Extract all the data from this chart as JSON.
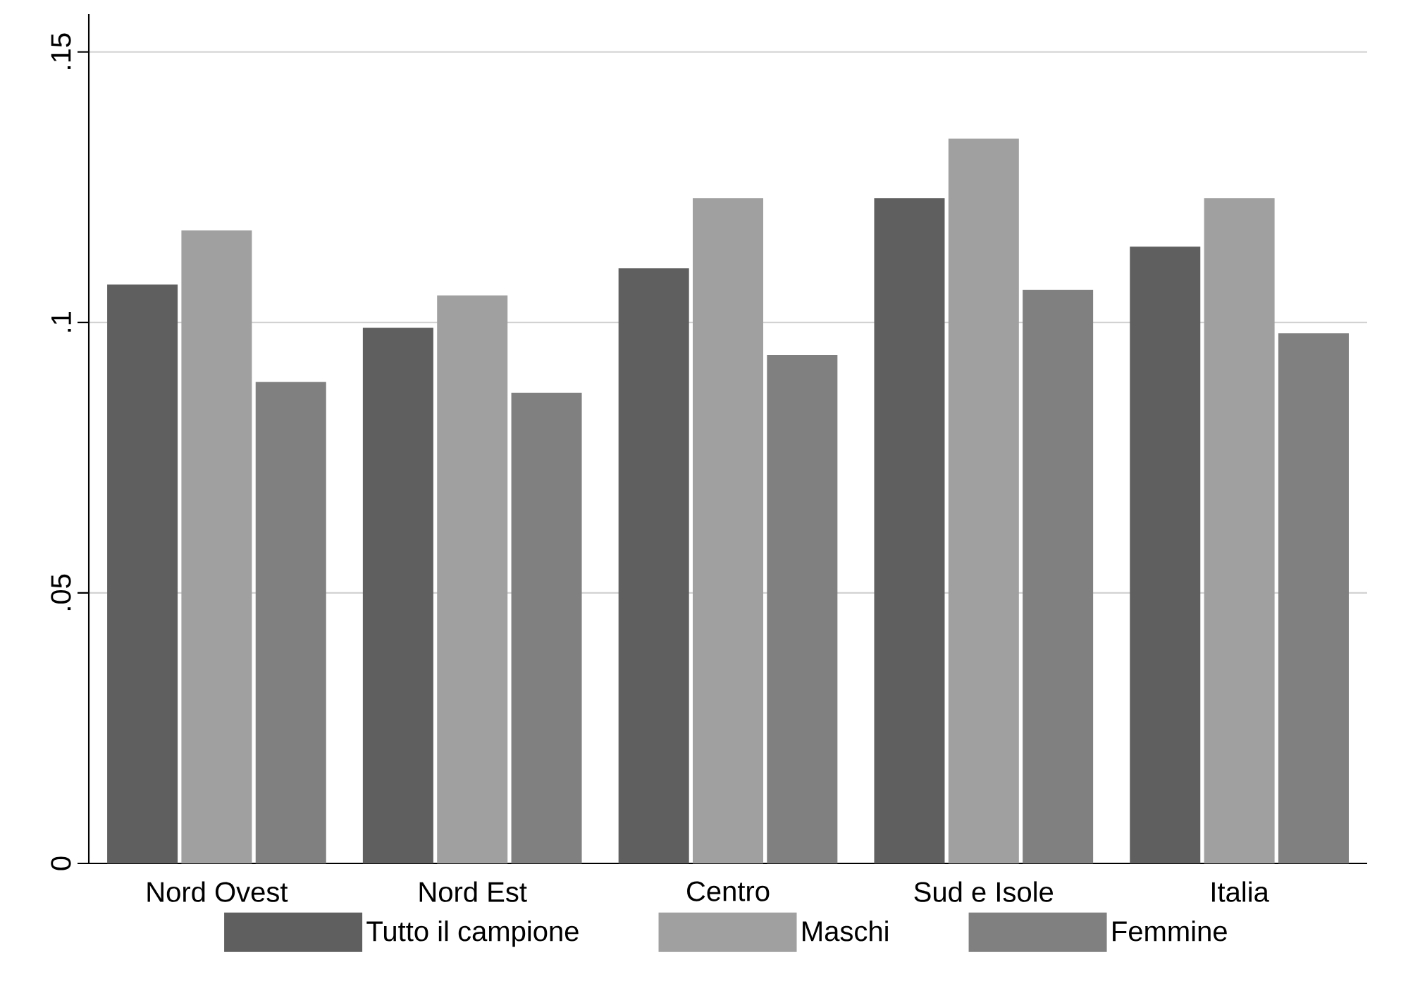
{
  "chart_data": {
    "type": "bar",
    "categories": [
      "Nord Ovest",
      "Nord Est",
      "Centro",
      "Sud e Isole",
      "Italia"
    ],
    "series": [
      {
        "name": "Tutto il campione",
        "color": "#5f5f5f",
        "values": [
          0.107,
          0.099,
          0.11,
          0.123,
          0.114
        ]
      },
      {
        "name": "Maschi",
        "color": "#a0a0a0",
        "values": [
          0.117,
          0.105,
          0.123,
          0.134,
          0.123
        ]
      },
      {
        "name": "Femmine",
        "color": "#808080",
        "values": [
          0.089,
          0.087,
          0.094,
          0.106,
          0.098
        ]
      }
    ],
    "ylim": [
      0,
      0.157
    ],
    "yticks": [
      0,
      {
        "value": 0.05,
        "label": ".05"
      },
      {
        "value": 0.1,
        "label": ".1"
      },
      {
        "value": 0.15,
        "label": ".15"
      }
    ],
    "grid": "y",
    "legend": "bottom"
  }
}
